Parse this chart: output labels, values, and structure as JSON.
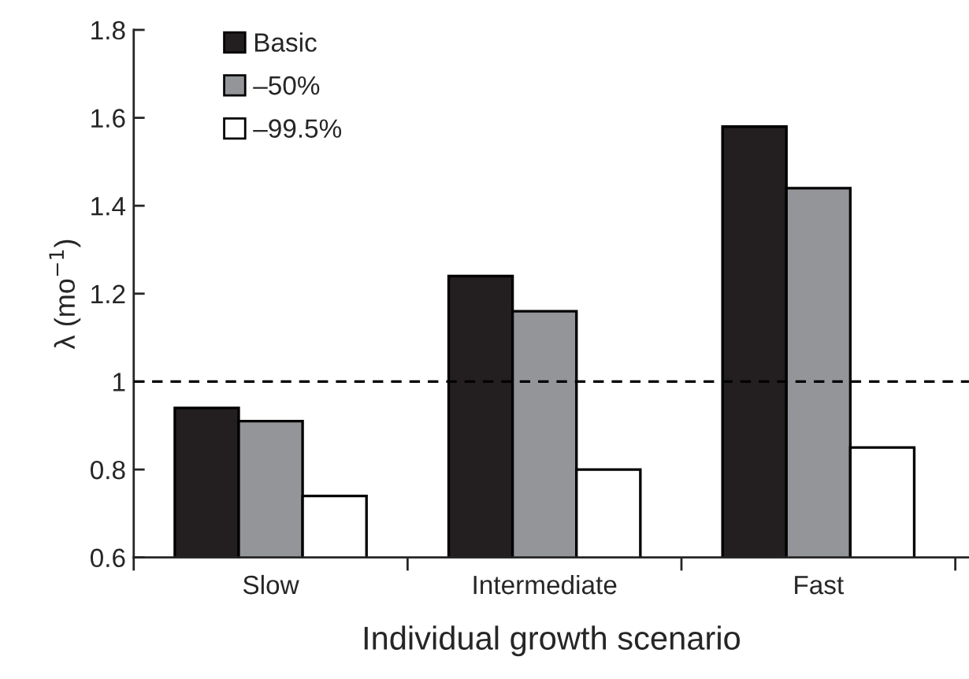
{
  "chart_data": {
    "type": "bar",
    "xlabel": "Individual growth scenario",
    "ylabel": "λ (mo$^{−1}$)",
    "categories": [
      "Slow",
      "Intermediate",
      "Fast"
    ],
    "series": [
      {
        "name": "Basic",
        "color": "#231f20",
        "values": [
          0.94,
          1.24,
          1.58
        ]
      },
      {
        "name": "–50%",
        "color": "#939598",
        "values": [
          0.91,
          1.16,
          1.44
        ]
      },
      {
        "name": "–99.5%",
        "color": "#ffffff",
        "values": [
          0.74,
          0.8,
          0.85
        ]
      }
    ],
    "ylim": [
      0.6,
      1.8
    ],
    "yticks": [
      0.6,
      0.8,
      1,
      1.2,
      1.4,
      1.6,
      1.8
    ],
    "ref_lines": [
      {
        "axis": "y",
        "value": 1,
        "label": null,
        "line_style": "dashed",
        "color": "#000000"
      }
    ],
    "grid": false,
    "legend": "top left"
  }
}
